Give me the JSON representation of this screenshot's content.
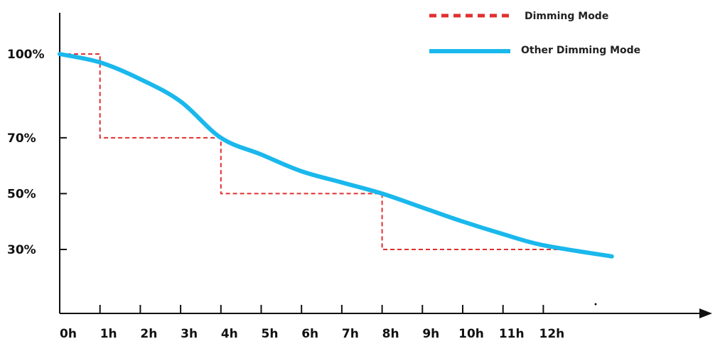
{
  "chart_data": {
    "type": "line",
    "x_ticks": [
      "0h",
      "1h",
      "2h",
      "3h",
      "4h",
      "5h",
      "6h",
      "7h",
      "8h",
      "9h",
      "10h",
      "11h",
      "12h"
    ],
    "y_ticks": [
      {
        "value": 100,
        "label": "100%"
      },
      {
        "value": 70,
        "label": "70%"
      },
      {
        "value": 50,
        "label": "50%"
      },
      {
        "value": 30,
        "label": "30%"
      }
    ],
    "series": [
      {
        "name": "Dimming Mode",
        "style": "dashed-step",
        "color": "#e03030",
        "points": [
          [
            0,
            100
          ],
          [
            1,
            100
          ],
          [
            1,
            70
          ],
          [
            4,
            70
          ],
          [
            4,
            50
          ],
          [
            8,
            50
          ],
          [
            8,
            30
          ],
          [
            12.4,
            30
          ]
        ]
      },
      {
        "name": "Other Dimming Mode",
        "style": "smooth",
        "color": "#1ab8ec",
        "points": [
          [
            0,
            100
          ],
          [
            1,
            97
          ],
          [
            2,
            91
          ],
          [
            3,
            83
          ],
          [
            4,
            70
          ],
          [
            5,
            64
          ],
          [
            6,
            58
          ],
          [
            7,
            54
          ],
          [
            8,
            50
          ],
          [
            9,
            45
          ],
          [
            10,
            40
          ],
          [
            11,
            35.5
          ],
          [
            12,
            31.5
          ],
          [
            13.7,
            27.5
          ]
        ]
      }
    ],
    "legend_position": "top-right",
    "grid": false
  }
}
